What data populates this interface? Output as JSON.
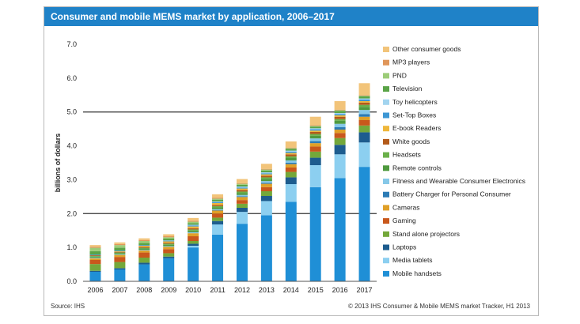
{
  "chart_data": {
    "type": "bar",
    "stacked": true,
    "title": "Consumer and mobile MEMS market by application, 2006–2017",
    "ylabel": "billions of dollars",
    "xlabel": "",
    "ylim": [
      0,
      7
    ],
    "yticks": [
      "0.0",
      "1.0",
      "2.0",
      "3.0",
      "4.0",
      "5.0",
      "6.0",
      "7.0"
    ],
    "categories": [
      "2006",
      "2007",
      "2008",
      "2009",
      "2010",
      "2011",
      "2012",
      "2013",
      "2014",
      "2015",
      "2016",
      "2017"
    ],
    "grid": "major lines at 2.0 and 5.0",
    "legend_position": "right",
    "series": [
      {
        "name": "Mobile handsets",
        "color": "#1f8fd6",
        "values": [
          0.28,
          0.35,
          0.5,
          0.68,
          1.0,
          1.38,
          1.7,
          1.95,
          2.35,
          2.78,
          3.05,
          3.38
        ]
      },
      {
        "name": "Media tablets",
        "color": "#8ccff0",
        "values": [
          0.0,
          0.0,
          0.0,
          0.0,
          0.05,
          0.3,
          0.35,
          0.42,
          0.52,
          0.65,
          0.7,
          0.72
        ]
      },
      {
        "name": "Laptops",
        "color": "#1d5c8e",
        "values": [
          0.03,
          0.04,
          0.05,
          0.05,
          0.06,
          0.1,
          0.12,
          0.15,
          0.2,
          0.22,
          0.28,
          0.3
        ]
      },
      {
        "name": "Stand alone projectors",
        "color": "#74a83a",
        "values": [
          0.2,
          0.18,
          0.15,
          0.1,
          0.08,
          0.1,
          0.12,
          0.14,
          0.16,
          0.18,
          0.2,
          0.2
        ]
      },
      {
        "name": "Gaming",
        "color": "#c9581c",
        "values": [
          0.12,
          0.15,
          0.15,
          0.12,
          0.14,
          0.12,
          0.11,
          0.12,
          0.13,
          0.15,
          0.15,
          0.16
        ]
      },
      {
        "name": "Cameras",
        "color": "#e0a028",
        "values": [
          0.05,
          0.06,
          0.06,
          0.07,
          0.09,
          0.09,
          0.09,
          0.1,
          0.1,
          0.1,
          0.1,
          0.1
        ]
      },
      {
        "name": "Battery Charger for Personal Consumer",
        "color": "#2b7bb5",
        "values": [
          0.0,
          0.0,
          0.0,
          0.0,
          0.0,
          0.01,
          0.02,
          0.03,
          0.04,
          0.06,
          0.07,
          0.08
        ]
      },
      {
        "name": "Fitness and Wearable Consumer Electronics",
        "color": "#86c8e8",
        "values": [
          0.02,
          0.02,
          0.02,
          0.02,
          0.03,
          0.03,
          0.04,
          0.05,
          0.07,
          0.08,
          0.1,
          0.12
        ]
      },
      {
        "name": "Remote controls",
        "color": "#4f9a3f",
        "values": [
          0.03,
          0.03,
          0.04,
          0.04,
          0.05,
          0.06,
          0.06,
          0.07,
          0.07,
          0.08,
          0.09,
          0.09
        ]
      },
      {
        "name": "Headsets",
        "color": "#6ab04a",
        "values": [
          0.02,
          0.02,
          0.02,
          0.03,
          0.03,
          0.03,
          0.04,
          0.04,
          0.05,
          0.05,
          0.05,
          0.06
        ]
      },
      {
        "name": "White goods",
        "color": "#b35a1a",
        "values": [
          0.02,
          0.02,
          0.03,
          0.03,
          0.04,
          0.04,
          0.05,
          0.05,
          0.06,
          0.06,
          0.07,
          0.07
        ]
      },
      {
        "name": "E-book Readers",
        "color": "#efb73a",
        "values": [
          0.0,
          0.02,
          0.03,
          0.04,
          0.05,
          0.05,
          0.04,
          0.04,
          0.04,
          0.04,
          0.04,
          0.04
        ]
      },
      {
        "name": "Set-Top Boxes",
        "color": "#3d97d4",
        "values": [
          0.02,
          0.02,
          0.02,
          0.02,
          0.03,
          0.03,
          0.03,
          0.03,
          0.04,
          0.04,
          0.04,
          0.05
        ]
      },
      {
        "name": "Toy helicopters",
        "color": "#a2d4ef",
        "values": [
          0.0,
          0.0,
          0.0,
          0.01,
          0.02,
          0.02,
          0.03,
          0.03,
          0.03,
          0.03,
          0.03,
          0.03
        ]
      },
      {
        "name": "Television",
        "color": "#5aa447",
        "values": [
          0.1,
          0.08,
          0.06,
          0.05,
          0.05,
          0.05,
          0.05,
          0.05,
          0.05,
          0.05,
          0.06,
          0.06
        ]
      },
      {
        "name": "PND",
        "color": "#9ccc78",
        "values": [
          0.1,
          0.08,
          0.06,
          0.04,
          0.04,
          0.03,
          0.03,
          0.03,
          0.02,
          0.02,
          0.02,
          0.02
        ]
      },
      {
        "name": "MP3 players",
        "color": "#e0965a",
        "values": [
          0.03,
          0.03,
          0.03,
          0.03,
          0.03,
          0.03,
          0.02,
          0.02,
          0.02,
          0.02,
          0.02,
          0.02
        ]
      },
      {
        "name": "Other consumer goods",
        "color": "#f2c47a",
        "values": [
          0.05,
          0.05,
          0.05,
          0.06,
          0.08,
          0.1,
          0.12,
          0.15,
          0.18,
          0.25,
          0.25,
          0.35
        ]
      }
    ]
  },
  "footer": {
    "source": "Source: IHS",
    "copyright": "© 2013 IHS   Consumer & Mobile MEMS market Tracker, H1 2013"
  }
}
